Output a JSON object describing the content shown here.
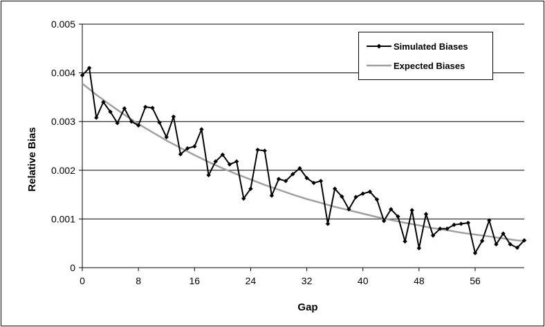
{
  "chart_data": {
    "type": "line",
    "xlabel": "Gap",
    "ylabel": "Relative Bias",
    "xlim": [
      0,
      63
    ],
    "ylim": [
      0,
      0.005
    ],
    "x_ticks": [
      "0",
      "8",
      "16",
      "24",
      "32",
      "40",
      "48",
      "56"
    ],
    "y_ticks": [
      "0",
      "0.001",
      "0.002",
      "0.003",
      "0.004",
      "0.005"
    ],
    "grid": "horizontal",
    "legend_position": "top-right",
    "series": [
      {
        "name": "Simulated Biases",
        "color": "#000000",
        "marker": "diamond",
        "x": [
          0,
          1,
          2,
          3,
          4,
          5,
          6,
          7,
          8,
          9,
          10,
          11,
          12,
          13,
          14,
          15,
          16,
          17,
          18,
          19,
          20,
          21,
          22,
          23,
          24,
          25,
          26,
          27,
          28,
          29,
          30,
          31,
          32,
          33,
          34,
          35,
          36,
          37,
          38,
          39,
          40,
          41,
          42,
          43,
          44,
          45,
          46,
          47,
          48,
          49,
          50,
          51,
          52,
          53,
          54,
          55,
          56,
          57,
          58,
          59,
          60,
          61,
          62,
          63
        ],
        "y": [
          0.00395,
          0.0041,
          0.00308,
          0.0034,
          0.0032,
          0.00297,
          0.00327,
          0.003,
          0.00292,
          0.0033,
          0.00328,
          0.00298,
          0.00268,
          0.0031,
          0.00233,
          0.00245,
          0.00249,
          0.00284,
          0.0019,
          0.00218,
          0.00232,
          0.00212,
          0.00218,
          0.00142,
          0.00162,
          0.00242,
          0.0024,
          0.00148,
          0.00182,
          0.00178,
          0.00192,
          0.00204,
          0.00184,
          0.00174,
          0.00178,
          0.0009,
          0.00162,
          0.00146,
          0.0012,
          0.00145,
          0.00152,
          0.00156,
          0.0014,
          0.00096,
          0.0012,
          0.00105,
          0.00054,
          0.00118,
          0.0004,
          0.0011,
          0.00066,
          0.0008,
          0.0008,
          0.00088,
          0.0009,
          0.00092,
          0.0003,
          0.00055,
          0.00097,
          0.00048,
          0.0007,
          0.00048,
          0.00041,
          0.00056
        ]
      },
      {
        "name": "Expected Biases",
        "color": "#a0a0a0",
        "marker": "none",
        "x": [
          0,
          2,
          4,
          6,
          8,
          10,
          12,
          14,
          16,
          18,
          20,
          22,
          24,
          26,
          28,
          30,
          32,
          34,
          36,
          38,
          40,
          42,
          44,
          46,
          48,
          50,
          52,
          54,
          56,
          58,
          60,
          62,
          63
        ],
        "y": [
          0.00378,
          0.00355,
          0.00334,
          0.00314,
          0.00295,
          0.00278,
          0.00261,
          0.00246,
          0.00231,
          0.00217,
          0.00204,
          0.00192,
          0.00181,
          0.0017,
          0.0016,
          0.0015,
          0.00141,
          0.00133,
          0.00125,
          0.00118,
          0.00111,
          0.00104,
          0.00098,
          0.00092,
          0.00087,
          0.00081,
          0.00077,
          0.00072,
          0.00068,
          0.00064,
          0.0006,
          0.00056,
          0.00055
        ]
      }
    ]
  }
}
